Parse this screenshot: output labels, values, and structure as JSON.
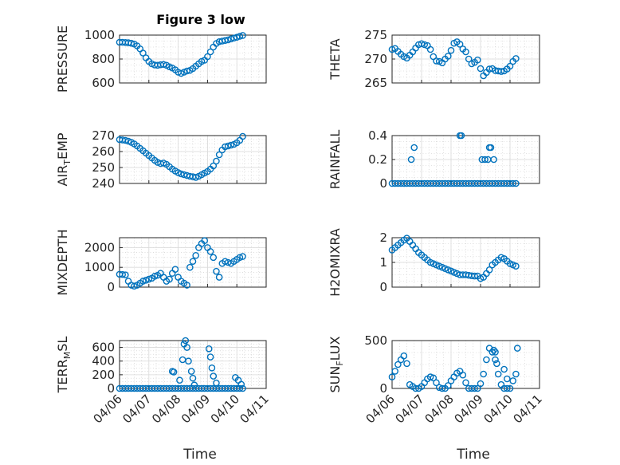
{
  "figure_title": "Figure 3 low",
  "marker_color": "#0072BD",
  "grid": true,
  "chart_data": [
    {
      "type": "scatter",
      "title": "Figure 3 low",
      "ylabel_main": "PRESSURE",
      "ylabel_sub": "",
      "ylabel_tail": "",
      "ylim": [
        600,
        1000
      ],
      "yticks": [
        600,
        800,
        1000
      ],
      "yticklabels": [
        "600",
        "800",
        "1000"
      ],
      "x": [
        6.0,
        6.1,
        6.2,
        6.3,
        6.4,
        6.5,
        6.6,
        6.7,
        6.8,
        6.9,
        7.0,
        7.1,
        7.2,
        7.3,
        7.4,
        7.5,
        7.6,
        7.7,
        7.8,
        7.9,
        8.0,
        8.1,
        8.2,
        8.3,
        8.4,
        8.5,
        8.6,
        8.7,
        8.8,
        8.9,
        9.0,
        9.1,
        9.2,
        9.3,
        9.4,
        9.5,
        9.6,
        9.7,
        9.8,
        9.9,
        10.0,
        10.1,
        10.2
      ],
      "y": [
        940,
        940,
        938,
        936,
        932,
        925,
        910,
        885,
        850,
        810,
        780,
        760,
        750,
        748,
        752,
        755,
        748,
        735,
        725,
        710,
        690,
        680,
        690,
        700,
        705,
        720,
        740,
        760,
        780,
        790,
        820,
        860,
        900,
        930,
        945,
        950,
        955,
        960,
        968,
        975,
        982,
        990,
        997
      ]
    },
    {
      "type": "scatter",
      "title": "",
      "ylabel_main": "THETA",
      "ylabel_sub": "",
      "ylabel_tail": "",
      "ylim": [
        265,
        275
      ],
      "yticks": [
        265,
        270,
        275
      ],
      "yticklabels": [
        "265",
        "270",
        "275"
      ],
      "x": [
        6.0,
        6.1,
        6.2,
        6.3,
        6.4,
        6.5,
        6.6,
        6.7,
        6.8,
        6.9,
        7.0,
        7.1,
        7.2,
        7.3,
        7.4,
        7.5,
        7.6,
        7.7,
        7.8,
        7.9,
        8.0,
        8.1,
        8.2,
        8.3,
        8.4,
        8.5,
        8.6,
        8.7,
        8.8,
        8.9,
        9.0,
        9.1,
        9.2,
        9.3,
        9.4,
        9.5,
        9.6,
        9.7,
        9.8,
        9.9,
        10.0,
        10.1,
        10.2
      ],
      "y": [
        272,
        272.2,
        271.6,
        271,
        270.5,
        270.2,
        270.8,
        271.5,
        272.3,
        273,
        273.2,
        273,
        272.8,
        272,
        270.5,
        269.6,
        269.5,
        269.2,
        270,
        270.6,
        271.8,
        273.3,
        273.6,
        273.1,
        272.1,
        271.5,
        270,
        269,
        269.3,
        269.8,
        268,
        266.5,
        267.2,
        267.9,
        268,
        267.6,
        267.5,
        267.4,
        267.5,
        267.9,
        268.5,
        269.5,
        270.1
      ]
    },
    {
      "type": "scatter",
      "title": "",
      "ylabel_main": "AIR",
      "ylabel_sub": "T",
      "ylabel_tail": "EMP",
      "ylim": [
        240,
        270
      ],
      "yticks": [
        240,
        250,
        260,
        270
      ],
      "yticklabels": [
        "240",
        "250",
        "260",
        "270"
      ],
      "x": [
        6.0,
        6.1,
        6.2,
        6.3,
        6.4,
        6.5,
        6.6,
        6.7,
        6.8,
        6.9,
        7.0,
        7.1,
        7.2,
        7.3,
        7.4,
        7.5,
        7.6,
        7.7,
        7.8,
        7.9,
        8.0,
        8.1,
        8.2,
        8.3,
        8.4,
        8.5,
        8.6,
        8.7,
        8.8,
        8.9,
        9.0,
        9.1,
        9.2,
        9.3,
        9.4,
        9.5,
        9.6,
        9.7,
        9.8,
        9.9,
        10.0,
        10.1,
        10.2
      ],
      "y": [
        267.5,
        267.3,
        267,
        266.5,
        265.8,
        264.8,
        263.5,
        262,
        260.5,
        259,
        257.5,
        256,
        254.5,
        253.2,
        252.5,
        252.8,
        252,
        250.5,
        249,
        247.8,
        246.8,
        246,
        245.5,
        245,
        244.5,
        244.2,
        243.8,
        244.5,
        245.5,
        246.5,
        247.5,
        249,
        251,
        254,
        258,
        261,
        263,
        263.5,
        264,
        264.5,
        265.5,
        267,
        269.5
      ]
    },
    {
      "type": "scatter",
      "title": "",
      "ylabel_main": "RAINFALL",
      "ylabel_sub": "",
      "ylabel_tail": "",
      "ylim": [
        0,
        0.4
      ],
      "yticks": [
        0,
        0.2,
        0.4
      ],
      "yticklabels": [
        "0",
        "0.2",
        "0.4"
      ],
      "x": [
        6.0,
        6.1,
        6.2,
        6.3,
        6.4,
        6.5,
        6.6,
        6.7,
        6.8,
        6.9,
        7.0,
        7.1,
        7.2,
        7.3,
        7.4,
        7.5,
        7.6,
        7.7,
        7.8,
        7.9,
        8.0,
        8.1,
        8.2,
        8.3,
        8.4,
        8.5,
        8.6,
        8.7,
        8.8,
        8.9,
        9.0,
        9.1,
        9.2,
        9.3,
        9.4,
        9.5,
        9.6,
        9.7,
        9.8,
        9.9,
        10.0,
        10.1,
        10.2,
        6.65,
        6.75,
        8.3,
        8.35,
        9.05,
        9.15,
        9.25,
        9.3,
        9.35,
        9.45
      ],
      "y": [
        0,
        0,
        0,
        0,
        0,
        0,
        0,
        0,
        0,
        0,
        0,
        0,
        0,
        0,
        0,
        0,
        0,
        0,
        0,
        0,
        0,
        0,
        0,
        0,
        0,
        0,
        0,
        0,
        0,
        0,
        0,
        0,
        0,
        0,
        0,
        0,
        0,
        0,
        0,
        0,
        0,
        0,
        0,
        0.2,
        0.3,
        0.4,
        0.4,
        0.2,
        0.2,
        0.2,
        0.3,
        0.3,
        0.2
      ]
    },
    {
      "type": "scatter",
      "title": "",
      "ylabel_main": "MIXDEPTH",
      "ylabel_sub": "",
      "ylabel_tail": "",
      "ylim": [
        0,
        2500
      ],
      "yticks": [
        0,
        1000,
        2000
      ],
      "yticklabels": [
        "0",
        "1000",
        "2000"
      ],
      "x": [
        6.0,
        6.1,
        6.2,
        6.3,
        6.4,
        6.5,
        6.6,
        6.7,
        6.8,
        6.9,
        7.0,
        7.1,
        7.2,
        7.3,
        7.4,
        7.5,
        7.6,
        7.7,
        7.8,
        7.9,
        8.0,
        8.1,
        8.2,
        8.3,
        8.4,
        8.5,
        8.6,
        8.7,
        8.8,
        8.9,
        9.0,
        9.1,
        9.2,
        9.3,
        9.4,
        9.5,
        9.6,
        9.7,
        9.8,
        9.9,
        10.0,
        10.1,
        10.2
      ],
      "y": [
        650,
        640,
        620,
        300,
        100,
        50,
        100,
        200,
        300,
        350,
        400,
        450,
        550,
        600,
        700,
        500,
        300,
        400,
        700,
        900,
        500,
        300,
        200,
        100,
        1000,
        1300,
        1600,
        2000,
        2200,
        2350,
        2000,
        1800,
        1500,
        800,
        500,
        1200,
        1300,
        1250,
        1200,
        1300,
        1400,
        1500,
        1550
      ]
    },
    {
      "type": "scatter",
      "title": "",
      "ylabel_main": "H2OMIXRA",
      "ylabel_sub": "",
      "ylabel_tail": "",
      "ylim": [
        0,
        2
      ],
      "yticks": [
        0,
        1,
        2
      ],
      "yticklabels": [
        "0",
        "1",
        "2"
      ],
      "x": [
        6.0,
        6.1,
        6.2,
        6.3,
        6.4,
        6.5,
        6.6,
        6.7,
        6.8,
        6.9,
        7.0,
        7.1,
        7.2,
        7.3,
        7.4,
        7.5,
        7.6,
        7.7,
        7.8,
        7.9,
        8.0,
        8.1,
        8.2,
        8.3,
        8.4,
        8.5,
        8.6,
        8.7,
        8.8,
        8.9,
        9.0,
        9.1,
        9.2,
        9.3,
        9.4,
        9.5,
        9.6,
        9.7,
        9.8,
        9.9,
        10.0,
        10.1,
        10.2
      ],
      "y": [
        1.5,
        1.6,
        1.7,
        1.8,
        1.9,
        1.98,
        1.85,
        1.7,
        1.55,
        1.4,
        1.3,
        1.2,
        1.1,
        1.0,
        0.95,
        0.9,
        0.85,
        0.8,
        0.75,
        0.7,
        0.65,
        0.6,
        0.55,
        0.5,
        0.5,
        0.5,
        0.48,
        0.46,
        0.45,
        0.45,
        0.35,
        0.4,
        0.55,
        0.7,
        0.9,
        1.0,
        1.1,
        1.2,
        1.15,
        1.05,
        0.95,
        0.9,
        0.85
      ]
    },
    {
      "type": "scatter",
      "title": "",
      "ylabel_main": "TERR",
      "ylabel_sub": "M",
      "ylabel_tail": "SL",
      "ylim": [
        0,
        700
      ],
      "yticks": [
        0,
        200,
        400,
        600
      ],
      "yticklabels": [
        "0",
        "200",
        "400",
        "600"
      ],
      "x": [
        6.0,
        6.1,
        6.2,
        6.3,
        6.4,
        6.5,
        6.6,
        6.7,
        6.8,
        6.9,
        7.0,
        7.1,
        7.2,
        7.3,
        7.4,
        7.5,
        7.6,
        7.7,
        7.8,
        7.9,
        8.0,
        8.1,
        8.2,
        8.3,
        8.4,
        8.5,
        8.6,
        8.7,
        8.8,
        8.9,
        9.0,
        9.1,
        9.2,
        9.3,
        9.4,
        9.5,
        9.6,
        9.7,
        9.8,
        9.9,
        10.0,
        10.1,
        10.2,
        7.8,
        7.85,
        8.05,
        8.15,
        8.2,
        8.25,
        8.3,
        8.35,
        8.45,
        8.5,
        8.55,
        9.05,
        9.1,
        9.15,
        9.2,
        9.3,
        9.95,
        10.05,
        10.15
      ],
      "y": [
        0,
        0,
        0,
        0,
        0,
        0,
        0,
        0,
        0,
        0,
        0,
        0,
        0,
        0,
        0,
        0,
        0,
        0,
        0,
        0,
        0,
        0,
        0,
        0,
        0,
        0,
        0,
        0,
        0,
        0,
        0,
        0,
        0,
        0,
        0,
        0,
        0,
        0,
        0,
        0,
        0,
        0,
        0,
        250,
        240,
        120,
        420,
        650,
        700,
        600,
        400,
        250,
        150,
        50,
        580,
        460,
        300,
        180,
        80,
        160,
        120,
        60
      ]
    },
    {
      "type": "scatter",
      "title": "",
      "ylabel_main": "SUN",
      "ylabel_sub": "F",
      "ylabel_tail": "LUX",
      "ylim": [
        0,
        500
      ],
      "yticks": [
        0,
        500
      ],
      "yticklabels": [
        "0",
        "500"
      ],
      "xlabel": "Time",
      "x": [
        6.0,
        6.1,
        6.2,
        6.3,
        6.4,
        6.5,
        6.6,
        6.7,
        6.8,
        6.9,
        7.0,
        7.1,
        7.2,
        7.3,
        7.4,
        7.5,
        7.6,
        7.7,
        7.8,
        7.9,
        8.0,
        8.1,
        8.2,
        8.3,
        8.4,
        8.5,
        8.6,
        8.7,
        8.8,
        8.9,
        9.0,
        9.1,
        9.2,
        9.3,
        9.4,
        9.5,
        9.6,
        9.7,
        9.8,
        9.9,
        10.0,
        10.1,
        10.2,
        9.45,
        9.5,
        9.55,
        9.8,
        9.9,
        10.25
      ],
      "y": [
        120,
        180,
        250,
        300,
        340,
        260,
        40,
        20,
        0,
        0,
        20,
        60,
        100,
        120,
        110,
        60,
        10,
        0,
        0,
        30,
        80,
        120,
        160,
        180,
        140,
        60,
        0,
        0,
        0,
        0,
        50,
        150,
        300,
        420,
        380,
        300,
        150,
        40,
        0,
        0,
        0,
        80,
        150,
        400,
        380,
        260,
        200,
        100,
        420
      ]
    }
  ],
  "x_axis": {
    "xlim": [
      6.0,
      11.0
    ],
    "ticks": [
      6,
      7,
      8,
      9,
      10,
      11
    ],
    "ticklabels": [
      "04/06",
      "04/07",
      "04/08",
      "04/09",
      "04/10",
      "04/11"
    ],
    "label": "Time"
  }
}
